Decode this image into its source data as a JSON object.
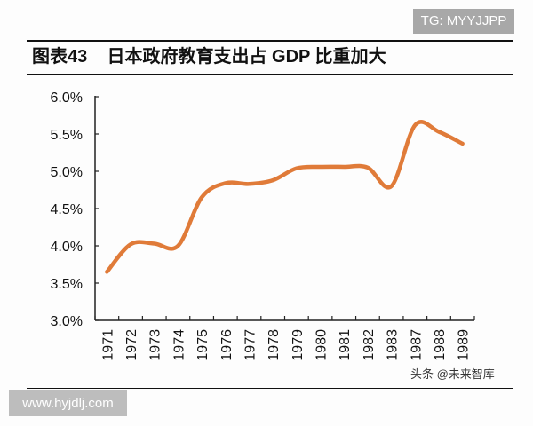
{
  "watermark_top": "TG: MYYJJPP",
  "watermark_bottom": "www.hyjdlj.com",
  "source_watermark": "头条 @未来智库",
  "chart_data": {
    "type": "line",
    "title": "图表43    日本政府教育支出占 GDP 比重加大",
    "categories": [
      "1971",
      "1972",
      "1973",
      "1974",
      "1975",
      "1976",
      "1977",
      "1978",
      "1979",
      "1980",
      "1981",
      "1982",
      "1983",
      "1987",
      "1988",
      "1989"
    ],
    "series": [
      {
        "values": [
          3.65,
          4.02,
          4.03,
          4.0,
          4.65,
          4.84,
          4.83,
          4.88,
          5.04,
          5.06,
          5.06,
          5.05,
          4.8,
          5.62,
          5.53,
          5.37
        ],
        "unit": "%"
      }
    ],
    "yticks": [
      "3.0%",
      "3.5%",
      "4.0%",
      "4.5%",
      "5.0%",
      "5.5%",
      "6.0%"
    ],
    "ylim": [
      3.0,
      6.0
    ],
    "grid": false,
    "line_color": "#e07b39"
  }
}
